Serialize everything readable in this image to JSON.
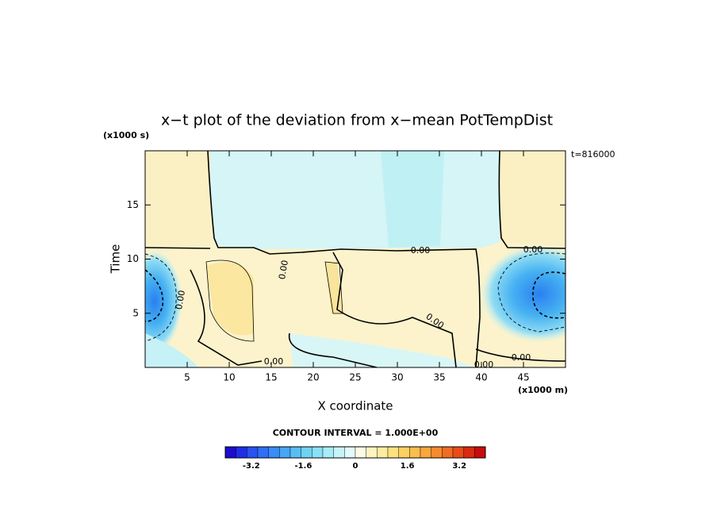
{
  "chart_data": {
    "type": "contour",
    "title": "x−t plot of the deviation from x−mean PotTempDist",
    "x_label": "X coordinate",
    "y_label": "Time",
    "x_unit": "(x1000 m)",
    "y_unit": "(x1000 s)",
    "time_note": "t=816000",
    "contour_interval": "CONTOUR INTERVAL = 1.000E+00",
    "xlim": [
      0,
      50
    ],
    "xticks": [
      5,
      10,
      15,
      20,
      25,
      30,
      35,
      40,
      45
    ],
    "ylim": [
      0,
      20
    ],
    "yticks": [
      5,
      10,
      15
    ],
    "contour_labels": [
      "0.00",
      "0.00",
      "0.00",
      "0.00",
      "0.00",
      "0.00",
      "0.00",
      "0.00"
    ],
    "colorbar_lim": [
      -4,
      4
    ],
    "colorbar_ticks": [
      -3.2,
      -1.6,
      0,
      1.6,
      3.2
    ],
    "colormap": [
      "#1c0ccf",
      "#1f2ee6",
      "#2852f2",
      "#2f6ff7",
      "#3a8cf7",
      "#47a6f5",
      "#58bef2",
      "#6ed2f2",
      "#8ae0f4",
      "#a8ecf6",
      "#c6f4f8",
      "#e2fafb",
      "#fdfbe6",
      "#fdf4c2",
      "#fdeca0",
      "#fde180",
      "#fcd162",
      "#fbbd4c",
      "#f9a63b",
      "#f68b2e",
      "#f06c22",
      "#e84b18",
      "#d92a10",
      "#c80c0b"
    ]
  }
}
